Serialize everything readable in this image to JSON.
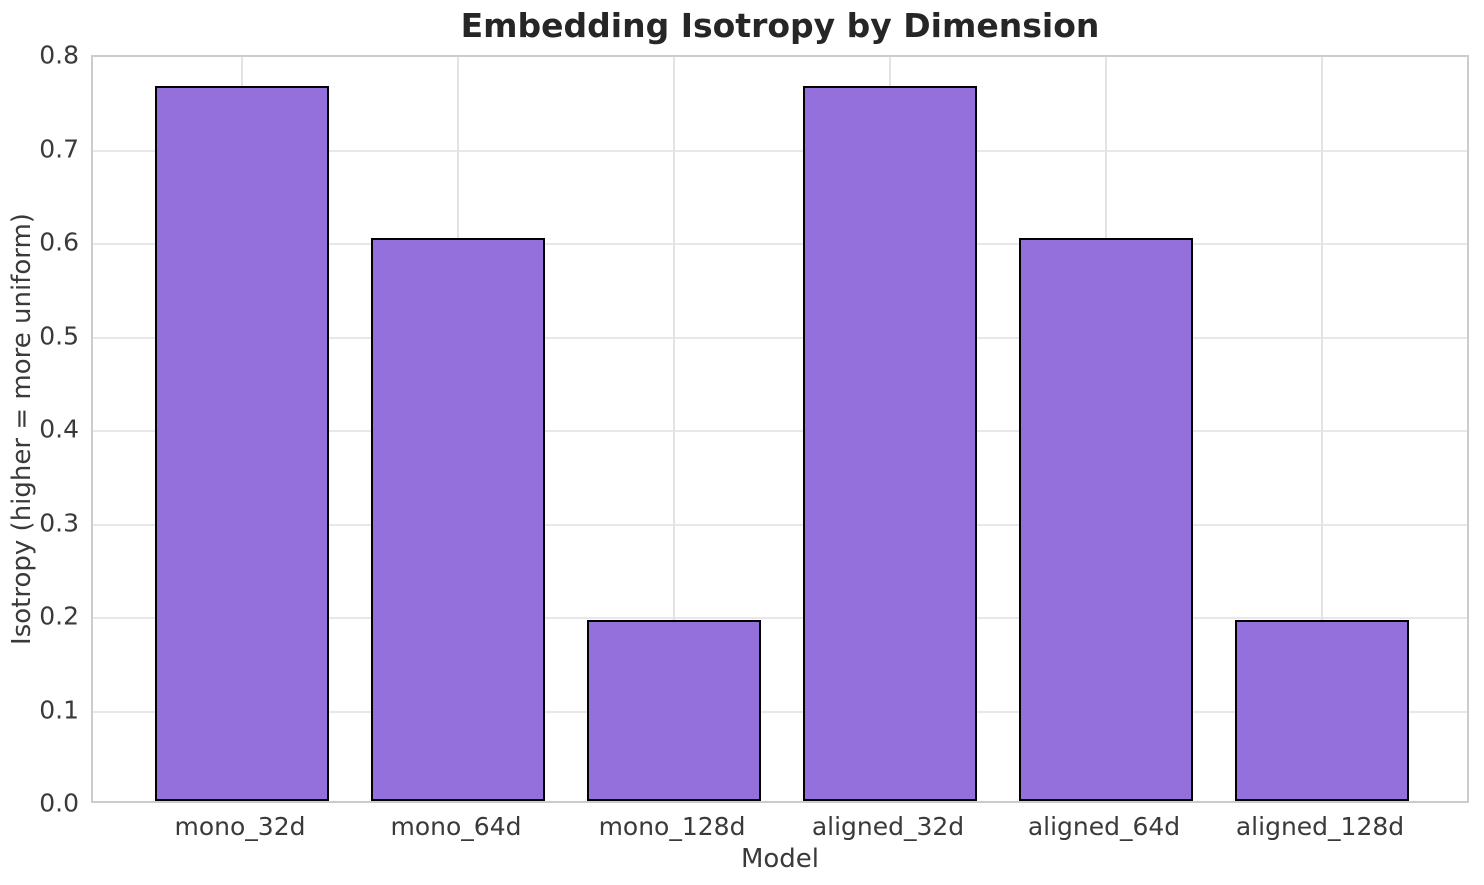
{
  "chart_data": {
    "type": "bar",
    "title": "Embedding Isotropy by Dimension",
    "xlabel": "Model",
    "ylabel": "Isotropy (higher = more uniform)",
    "categories": [
      "mono_32d",
      "mono_64d",
      "mono_128d",
      "aligned_32d",
      "aligned_64d",
      "aligned_128d"
    ],
    "values": [
      0.765,
      0.602,
      0.194,
      0.765,
      0.602,
      0.194
    ],
    "ylim": [
      0.0,
      0.8
    ],
    "ytick_labels": [
      "0.0",
      "0.1",
      "0.2",
      "0.3",
      "0.4",
      "0.5",
      "0.6",
      "0.7",
      "0.8"
    ],
    "grid": true,
    "legend": "none",
    "colors": {
      "bar_fill": "#9370DB",
      "bar_edge": "#000000",
      "grid_h": "#e8e8e8",
      "grid_v": "#e3e3e3",
      "spine": "#cccccc",
      "tick_text": "#3a3a3a",
      "title_text": "#262626",
      "background": "#ffffff"
    }
  }
}
